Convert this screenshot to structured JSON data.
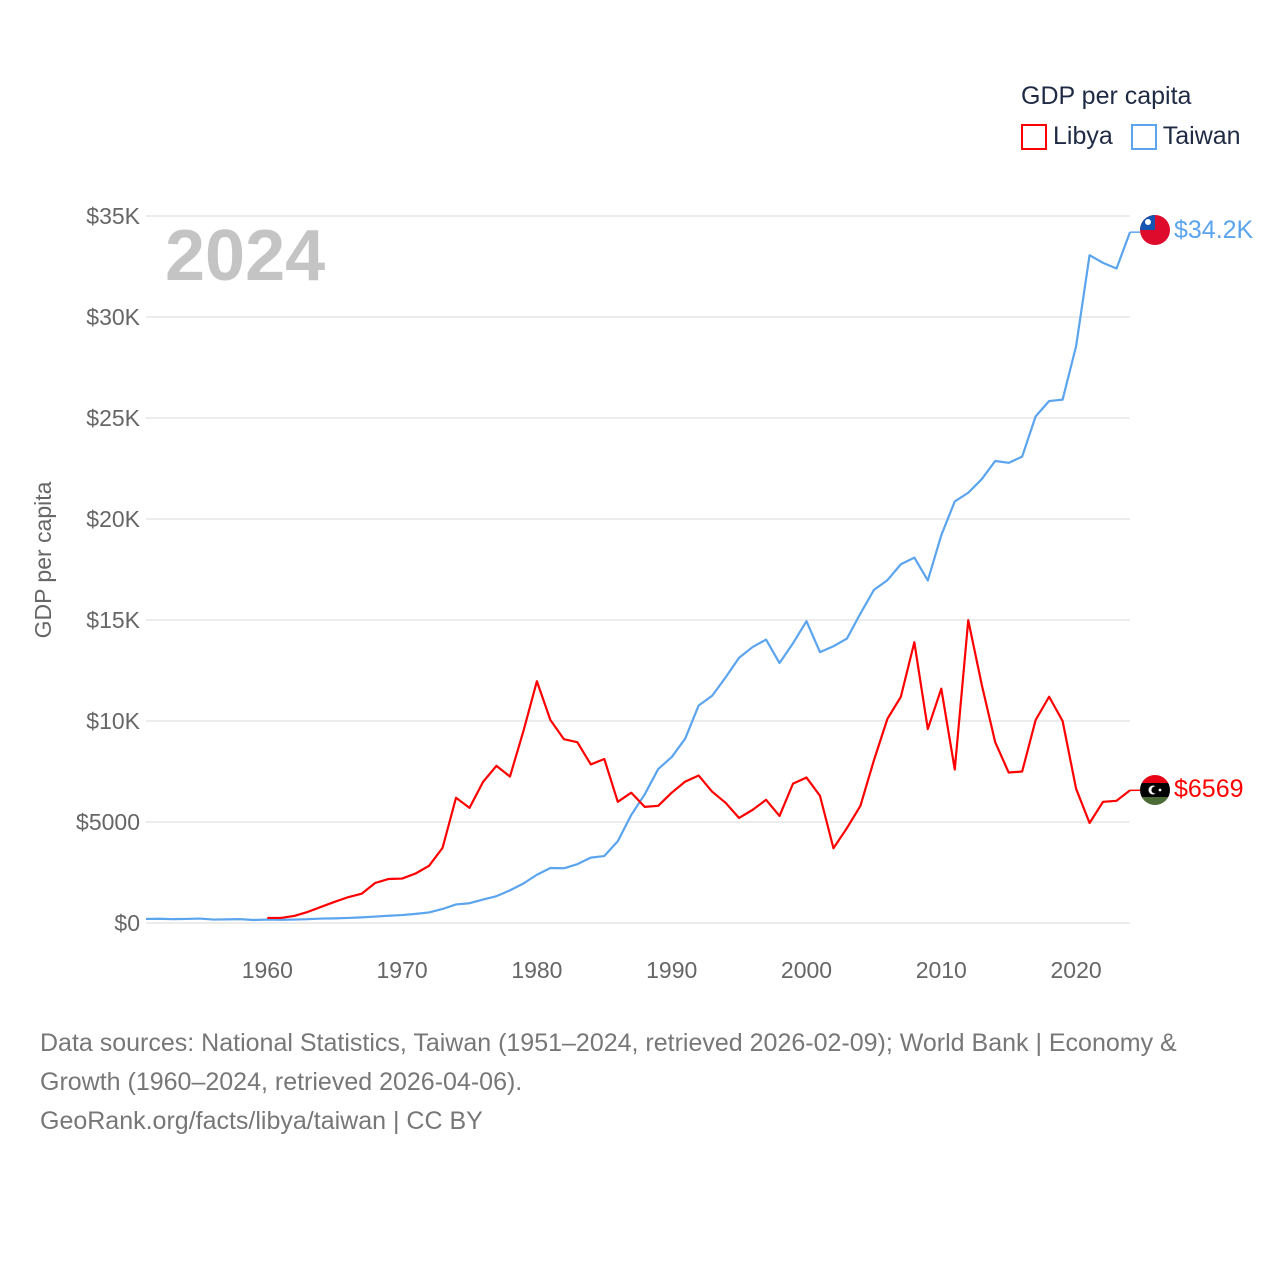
{
  "legend": {
    "title": "GDP per capita",
    "items": [
      {
        "label": "Libya",
        "color": "#ff0000"
      },
      {
        "label": "Taiwan",
        "color": "#5ba4ee"
      }
    ]
  },
  "year_label": "2024",
  "end_labels": {
    "taiwan": "$34.2K",
    "libya": "$6569"
  },
  "flags": {
    "taiwan": "taiwan-flag",
    "libya": "libya-flag"
  },
  "footer": {
    "line1": "Data sources: National Statistics, Taiwan (1951–2024, retrieved 2026-02-09); World Bank | Economy & Growth (1960–2024, retrieved 2026-04-06).",
    "line2": "GeoRank.org/facts/libya/taiwan | CC BY"
  },
  "chart_data": {
    "type": "line",
    "title": "GDP per capita",
    "xlabel": "",
    "ylabel": "GDP per capita",
    "xlim": [
      1951,
      2024
    ],
    "ylim": [
      0,
      35000
    ],
    "grid": true,
    "legend_position": "top-right",
    "x_ticks": [
      1960,
      1970,
      1980,
      1990,
      2000,
      2010,
      2020
    ],
    "y_ticks": [
      {
        "v": 0,
        "l": "$0"
      },
      {
        "v": 5000,
        "l": "$5000"
      },
      {
        "v": 10000,
        "l": "$10K"
      },
      {
        "v": 15000,
        "l": "$15K"
      },
      {
        "v": 20000,
        "l": "$20K"
      },
      {
        "v": 25000,
        "l": "$25K"
      },
      {
        "v": 30000,
        "l": "$30K"
      },
      {
        "v": 35000,
        "l": "$35K"
      }
    ],
    "series": [
      {
        "name": "Taiwan",
        "color": "#5ba4ee",
        "start": 1951,
        "values": [
          200,
          210,
          190,
          200,
          220,
          170,
          180,
          190,
          150,
          170,
          160,
          170,
          190,
          220,
          230,
          250,
          280,
          320,
          360,
          393,
          451,
          522,
          694,
          920,
          978,
          1158,
          1330,
          1615,
          1956,
          2389,
          2721,
          2709,
          2914,
          3236,
          3315,
          4045,
          5350,
          6370,
          7620,
          8216,
          9124,
          10768,
          11250,
          12160,
          13129,
          13660,
          14030,
          12870,
          13850,
          14940,
          13410,
          13700,
          14080,
          15320,
          16490,
          16970,
          17760,
          18090,
          16960,
          19200,
          20870,
          21300,
          21970,
          22870,
          22780,
          23090,
          25080,
          25840,
          25910,
          28550,
          33060,
          32680,
          32400,
          34200
        ]
      },
      {
        "name": "Libya",
        "color": "#ff0000",
        "start": 1960,
        "values": [
          250,
          250,
          350,
          550,
          800,
          1050,
          1280,
          1450,
          1980,
          2180,
          2200,
          2450,
          2830,
          3720,
          6200,
          5700,
          6980,
          7780,
          7250,
          9500,
          11970,
          10050,
          9100,
          8950,
          7850,
          8120,
          6000,
          6450,
          5750,
          5800,
          6450,
          7000,
          7300,
          6500,
          5950,
          5200,
          5600,
          6100,
          5300,
          6900,
          7200,
          6300,
          3700,
          4700,
          5800,
          8050,
          10100,
          11200,
          13900,
          9600,
          11600,
          7600,
          14990,
          11800,
          8950,
          7450,
          7500,
          10050,
          11200,
          10000,
          6650,
          4950,
          6000,
          6050,
          6569
        ]
      }
    ]
  }
}
